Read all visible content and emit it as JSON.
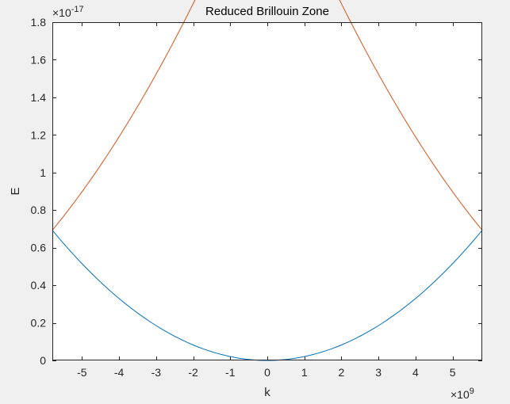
{
  "chart_data": {
    "type": "line",
    "title": "Reduced Brillouin Zone",
    "xlabel": "k",
    "ylabel": "E",
    "x_multiplier": "×10",
    "x_exponent": "9",
    "y_multiplier": "×10",
    "y_exponent": "-17",
    "xlim": [
      -5.8,
      5.8
    ],
    "ylim": [
      0,
      1.8
    ],
    "x_ticks": [
      "-5",
      "-4",
      "-3",
      "-2",
      "-1",
      "0",
      "1",
      "2",
      "3",
      "4",
      "5"
    ],
    "y_ticks": [
      "0",
      "0.2",
      "0.4",
      "0.6",
      "0.8",
      "1",
      "1.2",
      "1.4",
      "1.6",
      "1.8"
    ],
    "grid": false,
    "legend": "none",
    "band_scale": 0.0206,
    "series": [
      {
        "m": 0,
        "color": "#0072BD"
      },
      {
        "m": 1,
        "color": "#D95319"
      },
      {
        "m": -1,
        "color": "#D95319"
      },
      {
        "m": 2,
        "color": "#EDB120"
      },
      {
        "m": -2,
        "color": "#7E2F8E"
      },
      {
        "m": 3,
        "color": "#77AC30"
      },
      {
        "m": -3,
        "color": "#4DBEEE"
      },
      {
        "m": 4,
        "color": "#A2142F"
      },
      {
        "m": -4,
        "color": "#A2142F"
      },
      {
        "m": 5,
        "color": "#0072BD"
      },
      {
        "m": -5,
        "color": "#0072BD"
      },
      {
        "m": 6,
        "color": "#D95319"
      },
      {
        "m": -6,
        "color": "#D95319"
      }
    ]
  }
}
